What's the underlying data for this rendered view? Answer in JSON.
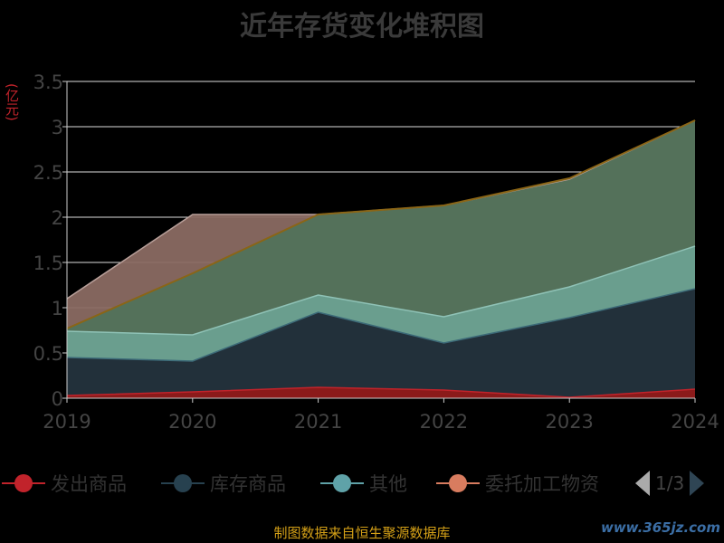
{
  "title": "近年存货变化堆积图",
  "unit_label": "(亿元)",
  "source": "制图数据来自恒生聚源数据库",
  "watermark": "www.365jz.com",
  "legend_page": "1/3",
  "colors": {
    "dispatched": "#8b1a1a",
    "stock": "#22303a",
    "other": "#6a9e8e",
    "consigned": "#8a6a62",
    "top": "#54715a",
    "topline": "#8a6516"
  },
  "chart_data": {
    "type": "area",
    "title": "近年存货变化堆积图",
    "ylabel": "(亿元)",
    "x": [
      "2019",
      "2020",
      "2021",
      "2022",
      "2023",
      "2024"
    ],
    "ylim": [
      0,
      3.5
    ],
    "yticks": [
      "0",
      "0.5",
      "1",
      "1.5",
      "2",
      "2.5",
      "3",
      "3.5"
    ],
    "stacked_totals": {
      "dispatched": [
        0.03,
        0.07,
        0.12,
        0.09,
        0.01,
        0.1
      ],
      "stock": [
        0.45,
        0.41,
        0.95,
        0.61,
        0.89,
        1.21
      ],
      "other": [
        0.74,
        0.7,
        1.14,
        0.9,
        1.23,
        1.68
      ],
      "consigned": [
        1.1,
        2.03,
        2.03,
        2.13,
        2.42,
        3.07
      ],
      "top": [
        0.77,
        1.38,
        2.03,
        2.13,
        2.43,
        3.07
      ]
    },
    "legend": [
      {
        "name": "发出商品",
        "color": "#c1232b"
      },
      {
        "name": "库存商品",
        "color": "#27414f"
      },
      {
        "name": "其他",
        "color": "#5fa2a8"
      },
      {
        "name": "委托加工物资",
        "color": "#d87c5f"
      }
    ]
  }
}
